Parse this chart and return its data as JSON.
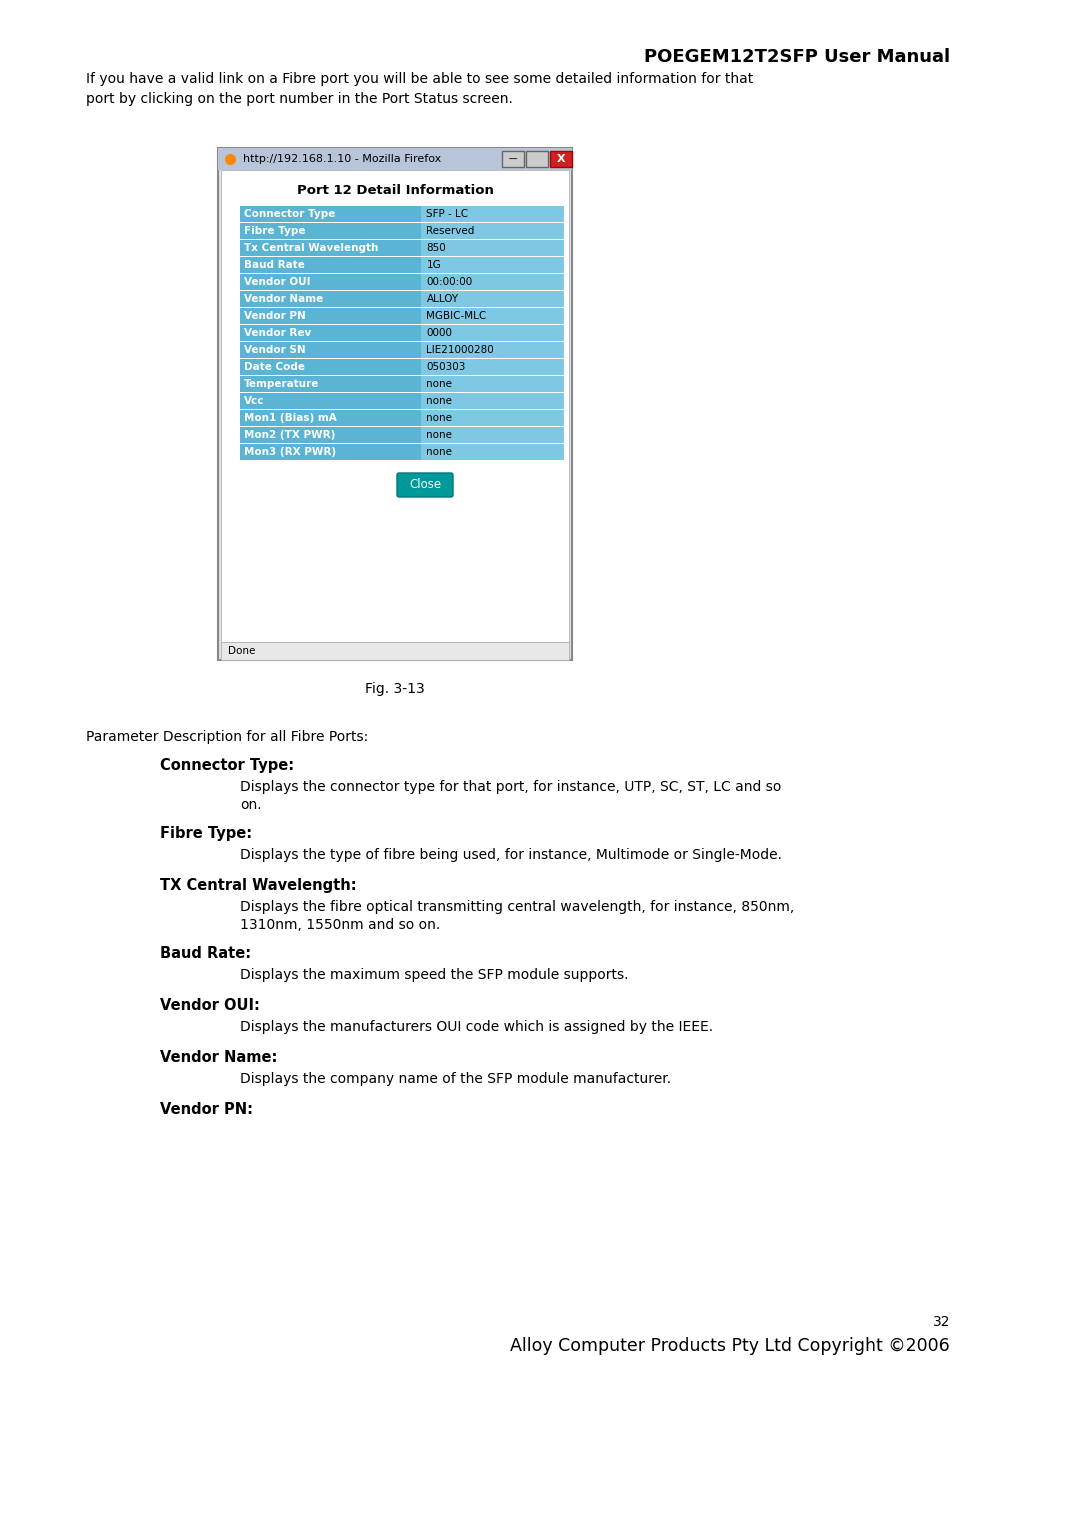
{
  "title": "POEGEM12T2SFP User Manual",
  "intro_text": "If you have a valid link on a Fibre port you will be able to see some detailed information for that\nport by clicking on the port number in the Port Status screen.",
  "browser_title": "http://192.168.1.10 - Mozilla Firefox",
  "dialog_title": "Port 12 Detail Information",
  "table_rows": [
    [
      "Connector Type",
      "SFP - LC"
    ],
    [
      "Fibre Type",
      "Reserved"
    ],
    [
      "Tx Central Wavelength",
      "850"
    ],
    [
      "Baud Rate",
      "1G"
    ],
    [
      "Vendor OUI",
      "00:00:00"
    ],
    [
      "Vendor Name",
      "ALLOY"
    ],
    [
      "Vendor PN",
      "MGBIC-MLC"
    ],
    [
      "Vendor Rev",
      "0000"
    ],
    [
      "Vendor SN",
      "LIE21000280"
    ],
    [
      "Date Code",
      "050303"
    ],
    [
      "Temperature",
      "none"
    ],
    [
      "Vcc",
      "none"
    ],
    [
      "Mon1 (Bias) mA",
      "none"
    ],
    [
      "Mon2 (TX PWR)",
      "none"
    ],
    [
      "Mon3 (RX PWR)",
      "none"
    ]
  ],
  "row_label_color": "#ffffff",
  "row_dark_bg": "#4da6c8",
  "row_light_bg": "#b8dff0",
  "close_button_color": "#009999",
  "fig_caption": "Fig. 3-13",
  "param_intro": "Parameter Description for all Fibre Ports:",
  "params": [
    {
      "label": "Connector Type:",
      "desc": "Displays the connector type for that port, for instance, UTP, SC, ST, LC and so\non."
    },
    {
      "label": "Fibre Type:",
      "desc": "Displays the type of fibre being used, for instance, Multimode or Single-Mode."
    },
    {
      "label": "TX Central Wavelength:",
      "desc": "Displays the fibre optical transmitting central wavelength, for instance, 850nm,\n1310nm, 1550nm and so on."
    },
    {
      "label": "Baud Rate:",
      "desc": "Displays the maximum speed the SFP module supports."
    },
    {
      "label": "Vendor OUI:",
      "desc": "Displays the manufacturers OUI code which is assigned by the IEEE."
    },
    {
      "label": "Vendor Name:",
      "desc": "Displays the company name of the SFP module manufacturer."
    },
    {
      "label": "Vendor PN:",
      "desc": ""
    }
  ],
  "page_number": "32",
  "footer": "Alloy Computer Products Pty Ltd Copyright ©2006",
  "bg_color": "#ffffff",
  "text_color": "#000000"
}
